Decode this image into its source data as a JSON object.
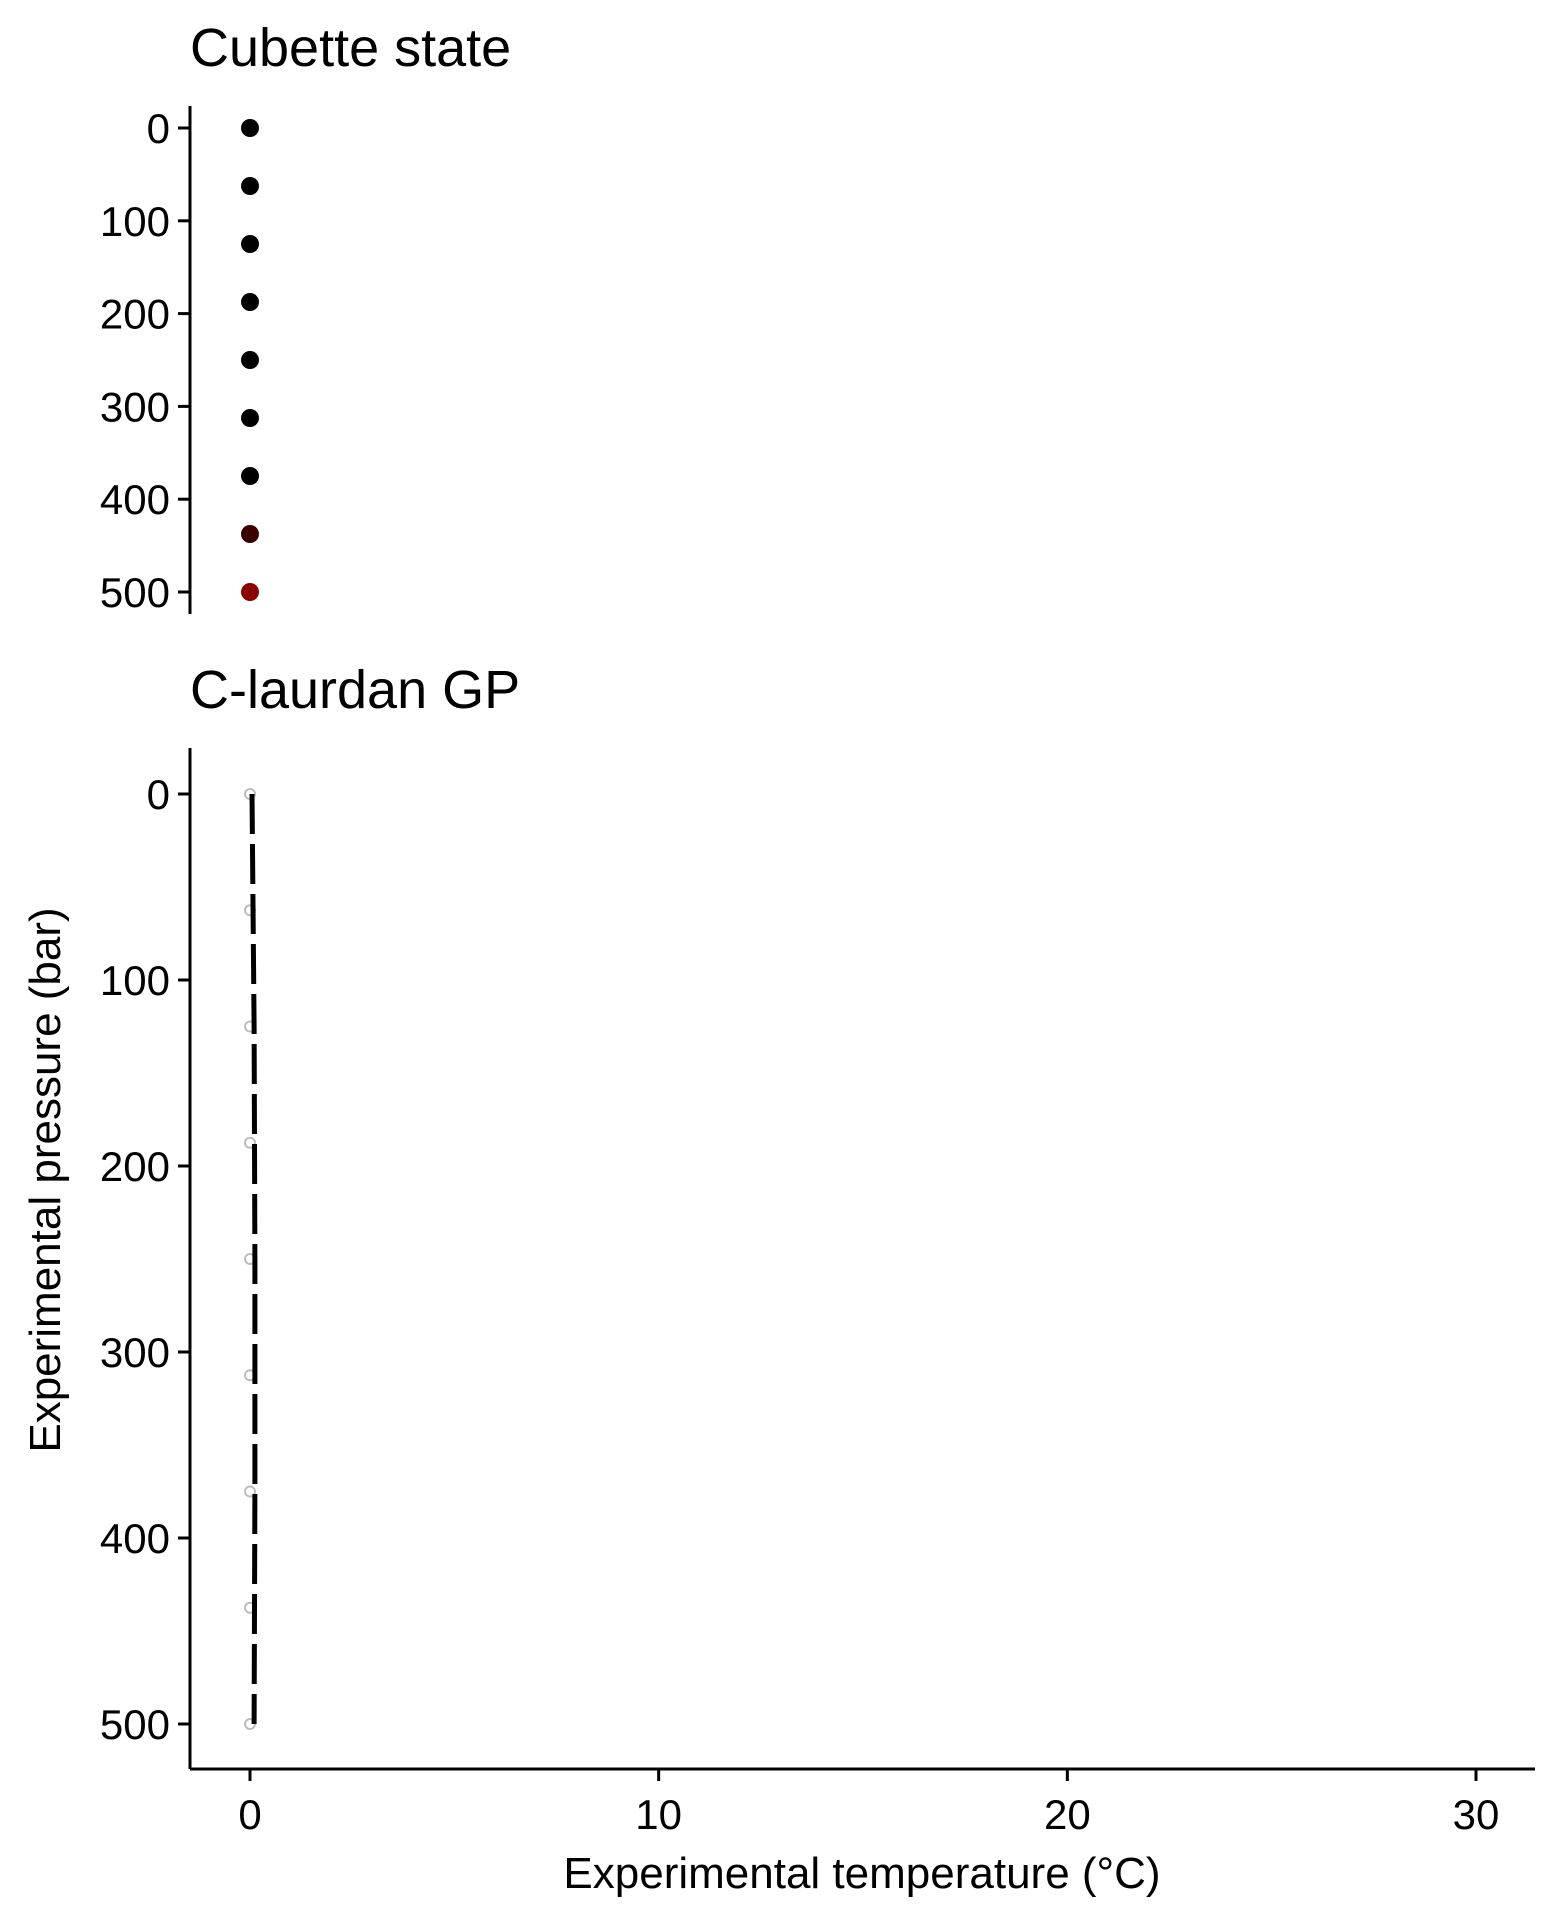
{
  "chart_data": [
    {
      "type": "scatter",
      "title": "Cubette state",
      "ylim": [
        0,
        500
      ],
      "y_reversed": true,
      "y_ticks": [
        "0",
        "100",
        "200",
        "300",
        "400",
        "500"
      ],
      "x_axis_shown": false,
      "points": [
        {
          "x": 0,
          "y": 0,
          "color": "#000000"
        },
        {
          "x": 0,
          "y": 62.5,
          "color": "#000000"
        },
        {
          "x": 0,
          "y": 125,
          "color": "#000000"
        },
        {
          "x": 0,
          "y": 187.5,
          "color": "#000000"
        },
        {
          "x": 0,
          "y": 250,
          "color": "#000000"
        },
        {
          "x": 0,
          "y": 312.5,
          "color": "#000000"
        },
        {
          "x": 0,
          "y": 375,
          "color": "#000000"
        },
        {
          "x": 0,
          "y": 437.5,
          "color": "#3a0000"
        },
        {
          "x": 0,
          "y": 500,
          "color": "#8b0000"
        }
      ]
    },
    {
      "type": "line",
      "title": "C-laurdan GP",
      "xlabel": "Experimental temperature (°C)",
      "ylabel": "Experimental pressure (bar)",
      "xlim": [
        -1.5,
        31.5
      ],
      "ylim": [
        0,
        500
      ],
      "y_reversed": true,
      "x_ticks": [
        "0",
        "10",
        "20",
        "30"
      ],
      "y_ticks": [
        "0",
        "100",
        "200",
        "300",
        "400",
        "500"
      ],
      "points": [
        {
          "x": 0,
          "y": 0
        },
        {
          "x": 0,
          "y": 62.5
        },
        {
          "x": 0,
          "y": 125
        },
        {
          "x": 0,
          "y": 187.5
        },
        {
          "x": 0,
          "y": 250
        },
        {
          "x": 0,
          "y": 312.5
        },
        {
          "x": 0,
          "y": 375
        },
        {
          "x": 0,
          "y": 437.5
        },
        {
          "x": 0,
          "y": 500
        }
      ],
      "series": [
        {
          "values": [
            [
              0.05,
              0
            ],
            [
              0.1,
              125
            ],
            [
              0.12,
              250
            ],
            [
              0.12,
              375
            ],
            [
              0.1,
              500
            ]
          ],
          "style": "dashed"
        }
      ]
    }
  ]
}
